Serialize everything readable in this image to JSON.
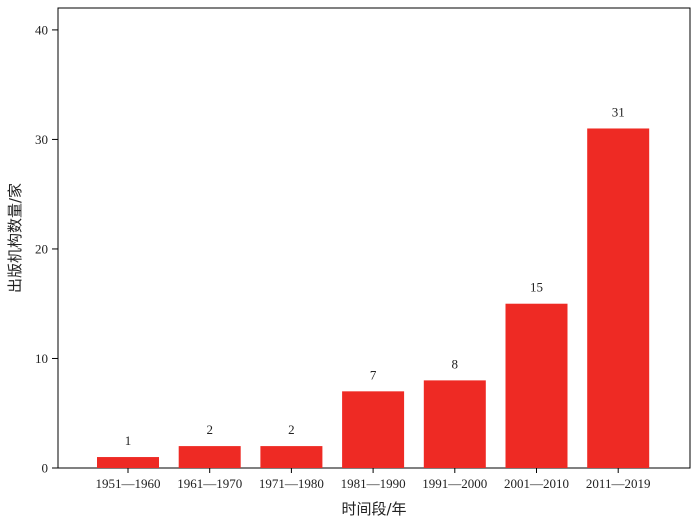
{
  "chart_data": {
    "type": "bar",
    "categories": [
      "1951—1960",
      "1961—1970",
      "1971—1980",
      "1981—1990",
      "1991—2000",
      "2001—2010",
      "2011—2019"
    ],
    "values": [
      1,
      2,
      2,
      7,
      8,
      15,
      31
    ],
    "data_labels": [
      "1",
      "2",
      "2",
      "7",
      "8",
      "15",
      "31"
    ],
    "xlabel": "时间段/年",
    "ylabel": "出版机构数量/家",
    "ylim": [
      0,
      42
    ],
    "yticks": [
      0,
      10,
      20,
      30,
      40
    ],
    "ytick_labels": [
      "0",
      "10",
      "20",
      "30",
      "40"
    ],
    "bar_color": "#ee2a24",
    "grid": false,
    "legend": "none"
  }
}
